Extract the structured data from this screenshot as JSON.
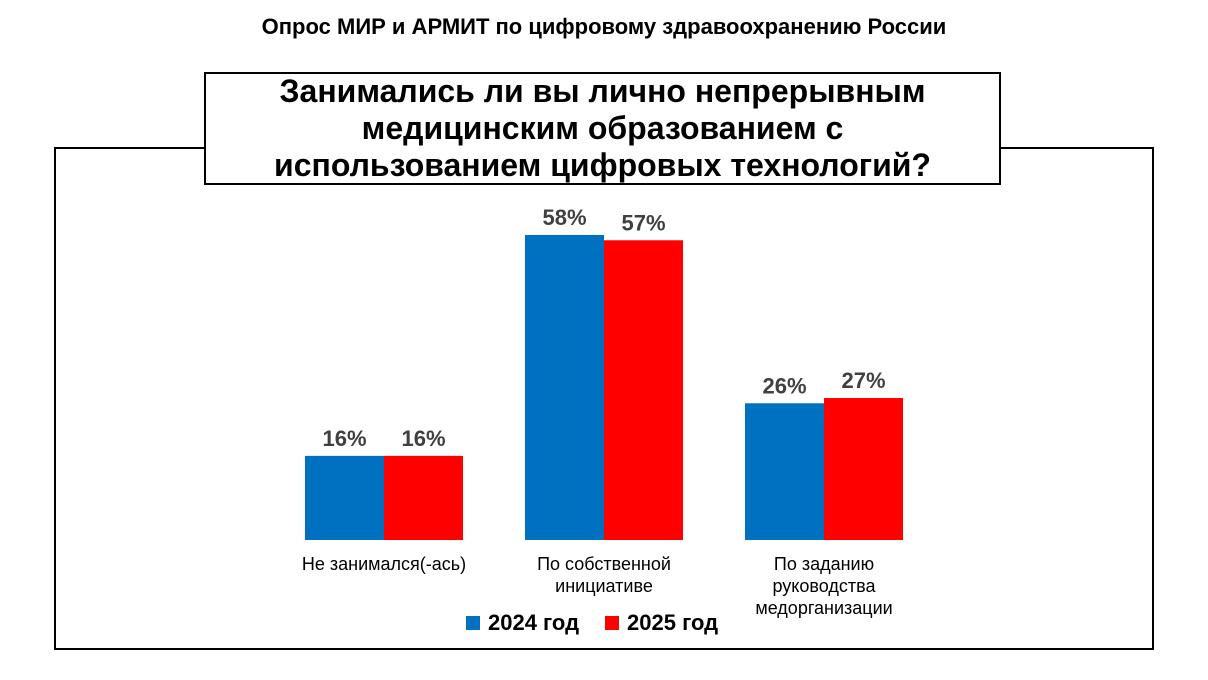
{
  "page": {
    "title": "Опрос МИР и АРМИТ по цифровому здравоохранению России"
  },
  "colors": {
    "series_2024": "#0070C0",
    "series_2025": "#FF0000",
    "value_label": "#404040"
  },
  "chart_data": {
    "type": "bar",
    "title": "Занимались ли вы лично непрерывным медицинским образованием с использованием цифровых технологий?",
    "categories": [
      [
        "Не занимался(-ась)"
      ],
      [
        "По собственной",
        "инициативе"
      ],
      [
        "По заданию",
        "руководства",
        "медорганизации"
      ]
    ],
    "series": [
      {
        "name": "2024 год",
        "values": [
          16,
          58,
          26
        ],
        "labels": [
          "16%",
          "58%",
          "26%"
        ]
      },
      {
        "name": "2025 год",
        "values": [
          16,
          57,
          27
        ],
        "labels": [
          "16%",
          "57%",
          "27%"
        ]
      }
    ],
    "ylim": [
      0,
      58
    ],
    "grid": false,
    "legend_position": "bottom"
  }
}
